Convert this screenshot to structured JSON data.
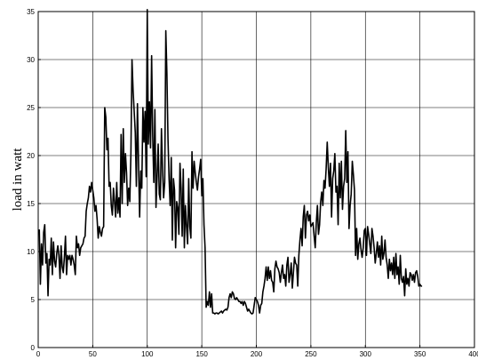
{
  "chart_data": {
    "type": "line",
    "title": "",
    "xlabel": "",
    "ylabel": "load in watt",
    "xlim": [
      0,
      400
    ],
    "ylim": [
      0,
      35
    ],
    "x_ticks": [
      "0",
      "50",
      "100",
      "150",
      "200",
      "250",
      "300",
      "350",
      "400"
    ],
    "y_ticks": [
      "0",
      "5",
      "10",
      "15",
      "20",
      "25",
      "30",
      "35"
    ],
    "grid": true,
    "legend": "none",
    "line_color": "#000000",
    "series": [
      {
        "values": [
          12.3,
          6.6,
          10.8,
          8.6,
          12.0,
          12.8,
          8.8,
          9.8,
          5.4,
          9.2,
          8.6,
          11.4,
          7.6,
          11.0,
          9.0,
          8.4,
          9.8,
          10.6,
          9.6,
          7.2,
          10.6,
          8.4,
          7.8,
          9.4,
          11.6,
          7.6,
          9.6,
          9.2,
          9.6,
          8.6,
          9.6,
          9.2,
          8.6,
          7.6,
          11.6,
          10.4,
          10.8,
          9.6,
          10.4,
          10.6,
          10.8,
          11.4,
          11.6,
          14.2,
          15.0,
          15.6,
          16.8,
          16.2,
          17.2,
          16.4,
          15.6,
          14.2,
          14.8,
          13.4,
          11.4,
          12.6,
          12.0,
          11.6,
          12.4,
          12.6,
          25.0,
          24.0,
          20.6,
          21.8,
          16.8,
          17.2,
          14.8,
          13.8,
          16.6,
          15.2,
          13.6,
          17.2,
          14.0,
          15.6,
          13.6,
          22.2,
          15.0,
          22.8,
          17.2,
          20.2,
          18.2,
          14.8,
          16.6,
          15.2,
          20.2,
          30.0,
          26.8,
          24.6,
          22.4,
          16.8,
          25.4,
          19.2,
          13.6,
          18.4,
          16.6,
          25.0,
          21.4,
          24.6,
          17.8,
          35.2,
          21.2,
          25.6,
          20.8,
          30.4,
          22.0,
          17.2,
          24.8,
          14.6,
          17.8,
          21.2,
          16.0,
          15.4,
          22.8,
          18.6,
          15.6,
          17.2,
          33.0,
          28.6,
          21.8,
          17.6,
          14.8,
          19.8,
          11.2,
          17.6,
          16.4,
          10.4,
          15.2,
          14.6,
          11.8,
          19.2,
          16.6,
          11.6,
          18.6,
          10.4,
          14.8,
          12.6,
          10.8,
          17.6,
          12.6,
          11.4,
          20.4,
          16.6,
          19.4,
          18.2,
          17.2,
          16.4,
          17.8,
          18.6,
          19.6,
          15.8,
          17.6,
          12.8,
          10.4,
          4.2,
          4.8,
          4.4,
          5.8,
          4.2,
          5.6,
          3.6,
          3.6,
          3.5,
          3.6,
          3.6,
          3.5,
          3.6,
          3.7,
          3.8,
          3.6,
          3.8,
          3.9,
          4.0,
          3.9,
          4.2,
          5.2,
          5.6,
          5.2,
          5.8,
          5.6,
          5.1,
          5.0,
          5.2,
          5.0,
          4.8,
          4.8,
          4.6,
          4.8,
          4.4,
          4.8,
          4.6,
          4.2,
          3.8,
          4.0,
          3.8,
          3.6,
          3.5,
          3.6,
          4.4,
          5.2,
          5.0,
          4.8,
          4.4,
          3.6,
          4.4,
          4.6,
          5.8,
          6.4,
          7.2,
          8.4,
          7.0,
          8.4,
          7.2,
          8.0,
          7.0,
          6.8,
          5.8,
          8.2,
          9.0,
          8.4,
          8.2,
          7.8,
          6.8,
          7.8,
          8.6,
          7.2,
          7.6,
          6.4,
          8.6,
          9.4,
          6.8,
          7.6,
          8.8,
          6.2,
          7.8,
          9.4,
          8.8,
          8.6,
          6.4,
          9.6,
          11.2,
          12.4,
          10.6,
          13.6,
          14.8,
          11.4,
          13.8,
          14.2,
          13.2,
          13.8,
          12.6,
          12.8,
          13.0,
          11.6,
          10.4,
          13.0,
          14.8,
          11.8,
          12.8,
          15.2,
          16.2,
          14.8,
          17.4,
          16.6,
          18.6,
          21.4,
          18.8,
          16.8,
          19.2,
          13.6,
          17.6,
          18.4,
          20.2,
          16.2,
          16.8,
          12.8,
          19.2,
          15.6,
          19.4,
          14.4,
          16.8,
          17.6,
          22.6,
          17.2,
          20.4,
          12.4,
          14.8,
          16.0,
          19.4,
          18.0,
          16.4,
          9.6,
          12.4,
          9.2,
          10.8,
          11.4,
          10.2,
          9.4,
          10.4,
          12.2,
          12.4,
          9.6,
          12.6,
          11.8,
          10.8,
          9.8,
          12.4,
          11.6,
          10.4,
          8.8,
          9.8,
          11.0,
          9.4,
          10.6,
          8.6,
          11.6,
          9.2,
          9.8,
          11.2,
          9.4,
          8.6,
          7.2,
          9.2,
          8.0,
          8.8,
          7.6,
          9.4,
          7.2,
          9.8,
          7.6,
          8.4,
          6.6,
          9.6,
          7.2,
          6.8,
          7.4,
          5.4,
          8.2,
          6.6,
          7.2,
          6.4,
          7.8,
          7.6,
          7.0,
          7.6,
          6.8,
          7.8,
          8.0,
          7.4,
          6.4,
          6.6,
          6.4,
          6.4
        ]
      }
    ]
  }
}
